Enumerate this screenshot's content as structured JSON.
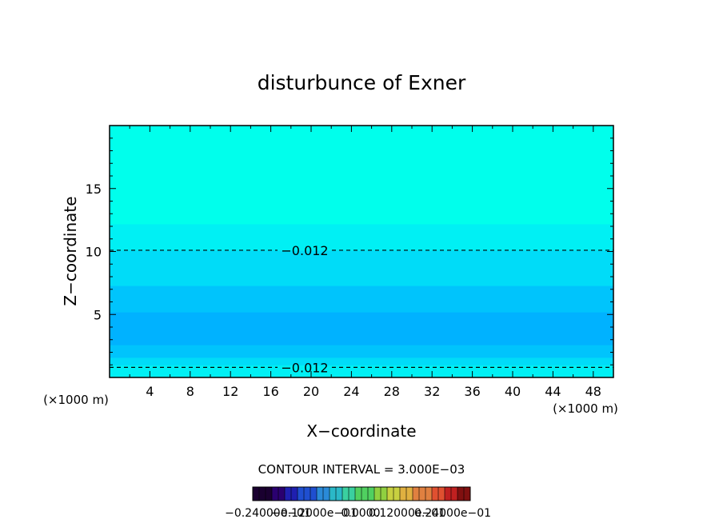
{
  "chart_data": {
    "type": "heatmap",
    "title": "disturbunce of Exner",
    "xlabel": "X−coordinate",
    "ylabel": "Z−coordinate",
    "x_unit_left": "(×1000 m)",
    "x_unit_right": "(×1000 m)",
    "xlim": [
      0,
      50
    ],
    "ylim": [
      0,
      20
    ],
    "x_ticks": [
      4,
      8,
      12,
      16,
      20,
      24,
      28,
      32,
      36,
      40,
      44,
      48
    ],
    "x_tick_labels": [
      "4",
      "8",
      "12",
      "16",
      "20",
      "24",
      "28",
      "32",
      "36",
      "40",
      "44",
      "48"
    ],
    "y_ticks": [
      5,
      10,
      15
    ],
    "y_tick_labels": [
      "5",
      "10",
      "15"
    ],
    "z_profile": {
      "z": [
        0.0,
        1.0,
        1.6,
        2.6,
        3.3,
        4.4,
        5.2,
        6.2,
        7.3,
        8.5,
        9.3,
        10.1,
        11.0,
        12.2,
        13.2,
        15.0,
        20.0
      ],
      "value": [
        -0.012,
        -0.012,
        -0.015,
        -0.019,
        -0.021,
        -0.019,
        -0.018,
        -0.017,
        -0.016,
        -0.014,
        -0.013,
        -0.012,
        -0.011,
        -0.008,
        -0.006,
        -0.004,
        -0.003
      ]
    },
    "fill_levels": [
      {
        "min": -0.009,
        "color": "#00ffec"
      },
      {
        "min": -0.012,
        "color": "#00f0f4"
      },
      {
        "min": -0.015,
        "color": "#00dcf8"
      },
      {
        "min": -0.018,
        "color": "#00c4fc"
      },
      {
        "min": -0.021,
        "color": "#00b2ff"
      },
      {
        "min": -0.024,
        "color": "#00a4ff"
      }
    ],
    "contours": [
      {
        "z": 10.1,
        "label": "−0.012",
        "style": "dashed"
      },
      {
        "z": 0.8,
        "label": "−0.012",
        "style": "dashed"
      }
    ],
    "contour_interval_text": "CONTOUR INTERVAL = 3.000E−03",
    "colorbar_tick_text": "−0.24000e−01",
    "colorbar_tick_text_2": "−0.12000e−01",
    "colorbar_tick_text_3": "0.0000",
    "colorbar_tick_text_4": "0.12000e−01",
    "colorbar_tick_text_5": "0.24000e−01",
    "colorbar_min": -0.024,
    "colorbar_max": 0.024,
    "colorbar_colors": [
      "#1a0030",
      "#2a0070",
      "#1f1fb0",
      "#1f4fd0",
      "#2a8ad8",
      "#2ab8c8",
      "#3ad0a0",
      "#50d060",
      "#90d040",
      "#c8d040",
      "#e0b040",
      "#e08040",
      "#e05030",
      "#c02020",
      "#801010"
    ]
  }
}
